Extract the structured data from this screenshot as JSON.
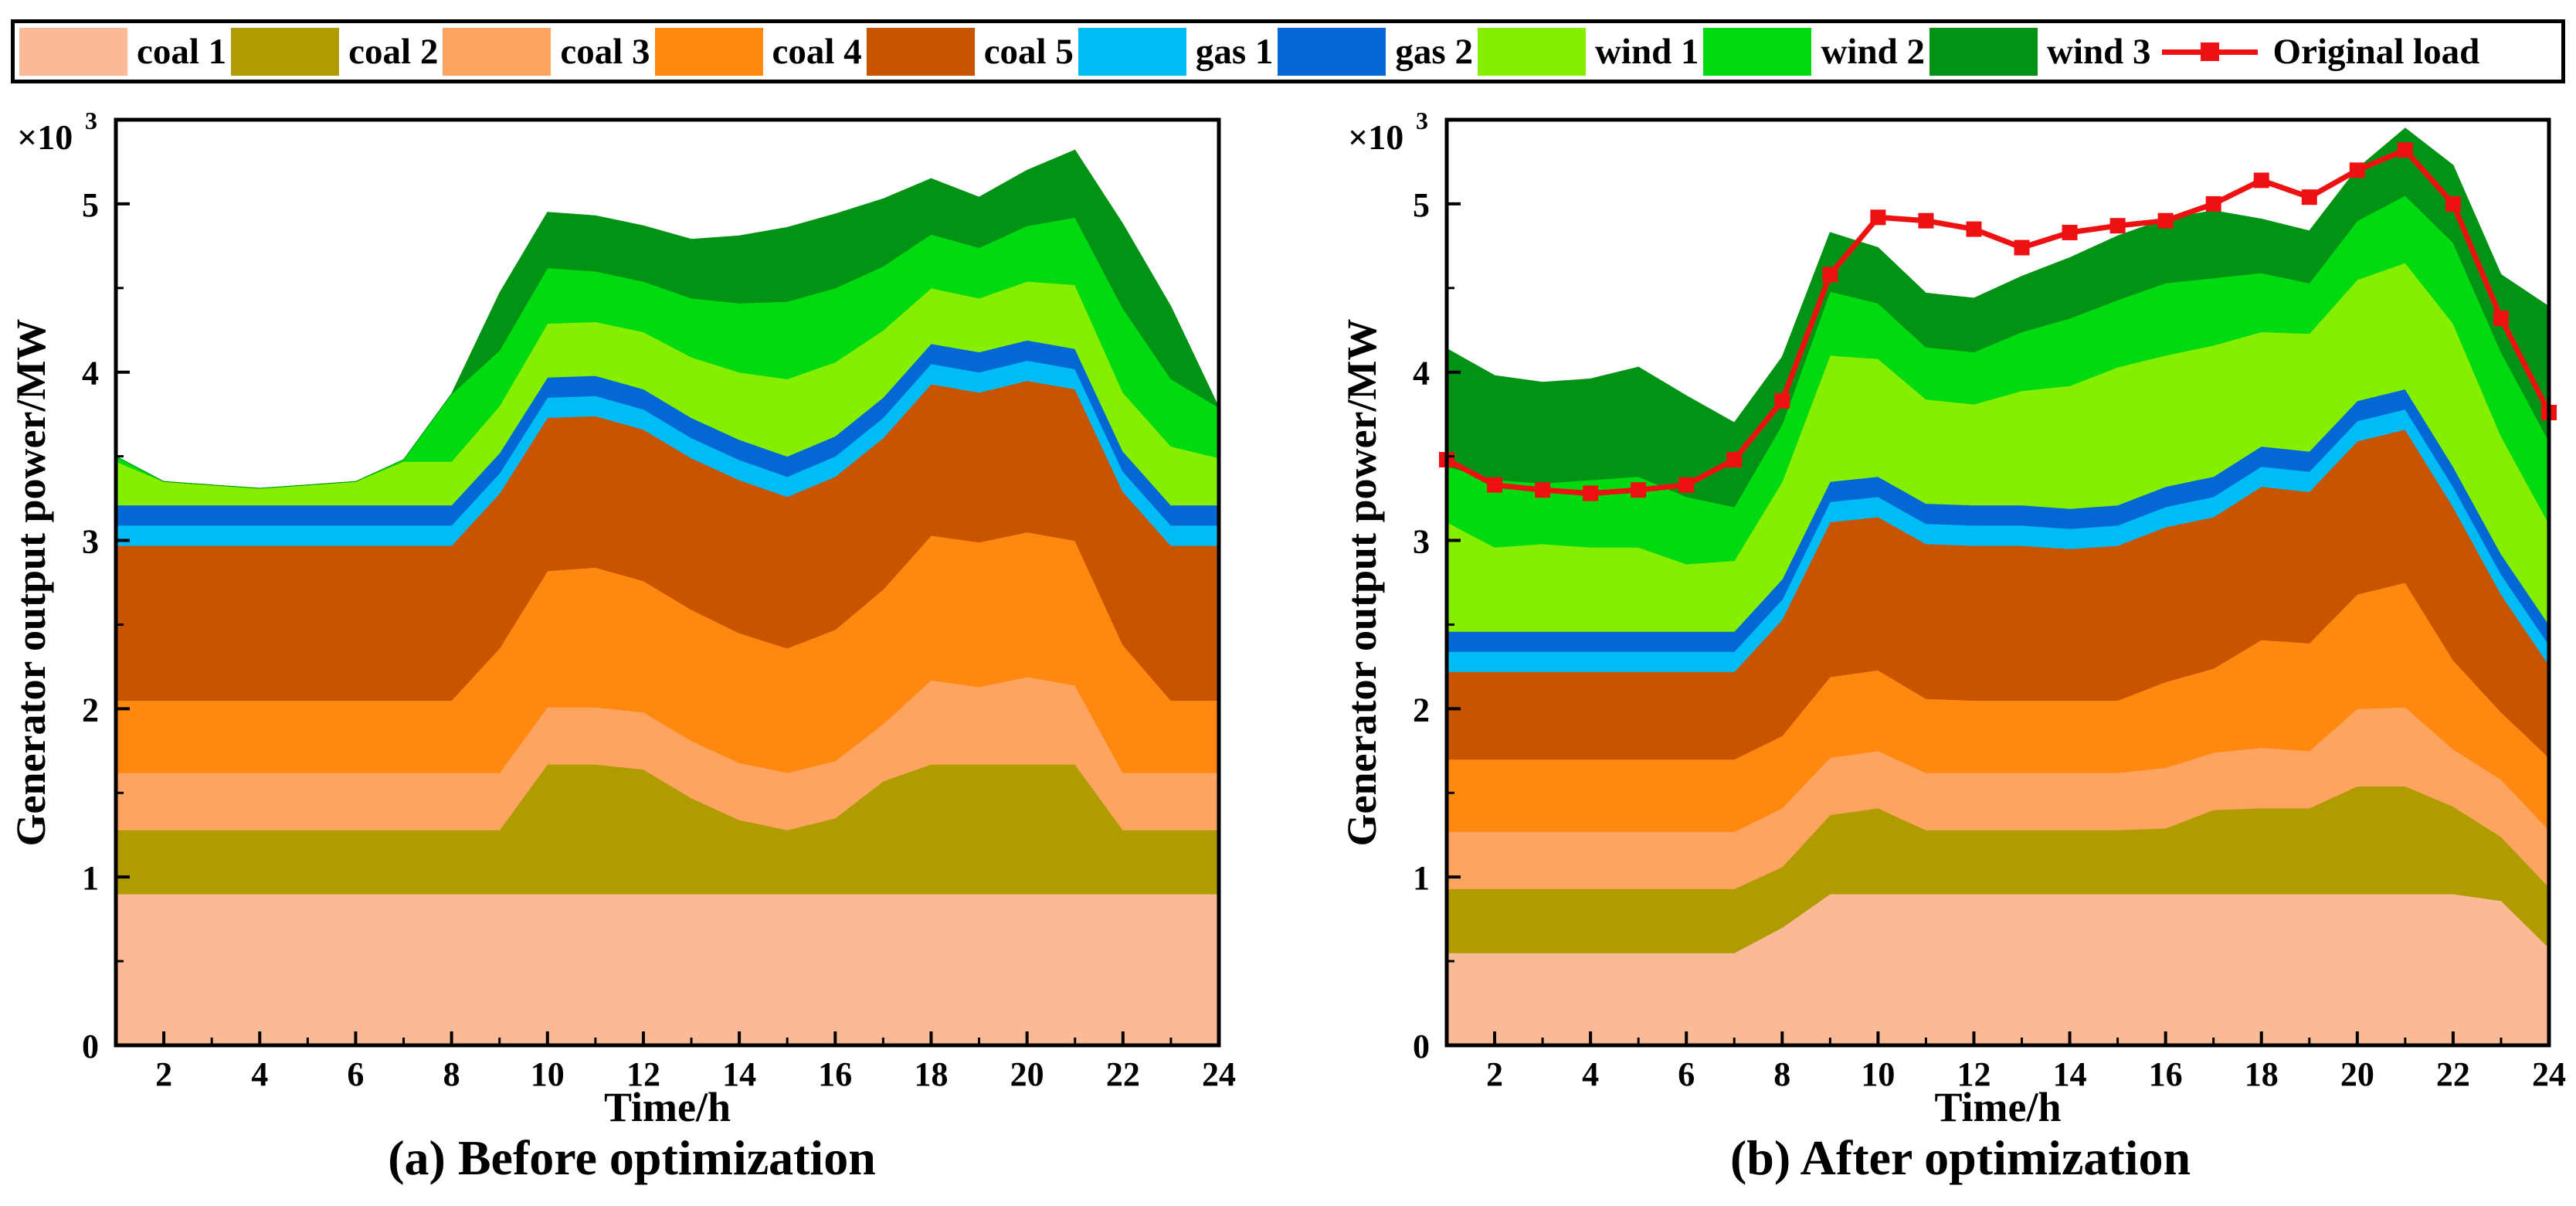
{
  "legend": {
    "items": [
      {
        "label": "coal 1",
        "color": "#FBBA96",
        "kind": "area"
      },
      {
        "label": "coal 2",
        "color": "#B09B00",
        "kind": "area"
      },
      {
        "label": "coal 3",
        "color": "#FDA460",
        "kind": "area"
      },
      {
        "label": "coal 4",
        "color": "#FF8810",
        "kind": "area"
      },
      {
        "label": "coal 5",
        "color": "#C85400",
        "kind": "area"
      },
      {
        "label": "gas 1",
        "color": "#00BBF4",
        "kind": "area"
      },
      {
        "label": "gas 2",
        "color": "#0368D4",
        "kind": "area"
      },
      {
        "label": "wind 1",
        "color": "#86EE00",
        "kind": "area"
      },
      {
        "label": "wind 2",
        "color": "#00DA10",
        "kind": "area"
      },
      {
        "label": "wind 3",
        "color": "#029314",
        "kind": "area"
      },
      {
        "label": "Original load",
        "color": "#EE1111",
        "kind": "line"
      }
    ]
  },
  "chart_data": [
    {
      "type": "area",
      "stacked": true,
      "title": "(a) Before optimization",
      "xlabel": "Time/h",
      "ylabel": "Generator output power/MW",
      "multiplier_label": "×10",
      "multiplier_exp": "3",
      "xlim": [
        1,
        24
      ],
      "ylim": [
        0,
        5.5
      ],
      "xticks": [
        2,
        4,
        6,
        8,
        10,
        12,
        14,
        16,
        18,
        20,
        22,
        24
      ],
      "yticks": [
        0,
        1,
        2,
        3,
        4,
        5
      ],
      "x": [
        1,
        2,
        3,
        4,
        5,
        6,
        7,
        8,
        9,
        10,
        11,
        12,
        13,
        14,
        15,
        16,
        17,
        18,
        19,
        20,
        21,
        22,
        23,
        24
      ],
      "series": [
        {
          "name": "coal 1",
          "color": "#FBBA96",
          "values": [
            0.9,
            0.9,
            0.9,
            0.9,
            0.9,
            0.9,
            0.9,
            0.9,
            0.9,
            0.9,
            0.9,
            0.9,
            0.9,
            0.9,
            0.9,
            0.9,
            0.9,
            0.9,
            0.9,
            0.9,
            0.9,
            0.9,
            0.9,
            0.9
          ]
        },
        {
          "name": "coal 2",
          "color": "#B09B00",
          "values": [
            0.38,
            0.38,
            0.38,
            0.38,
            0.38,
            0.38,
            0.38,
            0.38,
            0.38,
            0.77,
            0.77,
            0.74,
            0.57,
            0.44,
            0.38,
            0.45,
            0.67,
            0.77,
            0.77,
            0.77,
            0.77,
            0.38,
            0.38,
            0.38
          ]
        },
        {
          "name": "coal 3",
          "color": "#FDA460",
          "values": [
            0.34,
            0.34,
            0.34,
            0.34,
            0.34,
            0.34,
            0.34,
            0.34,
            0.34,
            0.34,
            0.34,
            0.34,
            0.34,
            0.34,
            0.34,
            0.34,
            0.34,
            0.5,
            0.46,
            0.52,
            0.47,
            0.34,
            0.34,
            0.34
          ]
        },
        {
          "name": "coal 4",
          "color": "#FF8810",
          "values": [
            0.43,
            0.43,
            0.43,
            0.43,
            0.43,
            0.43,
            0.43,
            0.43,
            0.74,
            0.81,
            0.83,
            0.78,
            0.78,
            0.77,
            0.74,
            0.78,
            0.8,
            0.86,
            0.86,
            0.86,
            0.86,
            0.76,
            0.43,
            0.43
          ]
        },
        {
          "name": "coal 5",
          "color": "#C85400",
          "values": [
            0.92,
            0.92,
            0.92,
            0.92,
            0.92,
            0.92,
            0.92,
            0.92,
            0.92,
            0.91,
            0.9,
            0.9,
            0.9,
            0.91,
            0.9,
            0.91,
            0.9,
            0.9,
            0.89,
            0.9,
            0.9,
            0.91,
            0.92,
            0.92
          ]
        },
        {
          "name": "gas 1",
          "color": "#00BBF4",
          "values": [
            0.12,
            0.12,
            0.12,
            0.12,
            0.12,
            0.12,
            0.12,
            0.12,
            0.12,
            0.12,
            0.12,
            0.12,
            0.12,
            0.12,
            0.12,
            0.12,
            0.12,
            0.12,
            0.12,
            0.12,
            0.12,
            0.12,
            0.12,
            0.12
          ]
        },
        {
          "name": "gas 2",
          "color": "#0368D4",
          "values": [
            0.12,
            0.12,
            0.12,
            0.12,
            0.12,
            0.12,
            0.12,
            0.12,
            0.12,
            0.12,
            0.12,
            0.12,
            0.12,
            0.12,
            0.12,
            0.12,
            0.12,
            0.12,
            0.12,
            0.12,
            0.12,
            0.12,
            0.12,
            0.12
          ]
        },
        {
          "name": "wind 1",
          "color": "#86EE00",
          "values": [
            0.26,
            0.14,
            0.12,
            0.1,
            0.12,
            0.14,
            0.26,
            0.26,
            0.28,
            0.32,
            0.32,
            0.34,
            0.36,
            0.4,
            0.46,
            0.44,
            0.4,
            0.33,
            0.32,
            0.35,
            0.38,
            0.35,
            0.35,
            0.28
          ]
        },
        {
          "name": "wind 2",
          "color": "#00DA10",
          "values": [
            0.03,
            0,
            0,
            0,
            0,
            0,
            0.01,
            0.4,
            0.33,
            0.33,
            0.3,
            0.3,
            0.35,
            0.41,
            0.46,
            0.44,
            0.38,
            0.32,
            0.3,
            0.33,
            0.4,
            0.5,
            0.4,
            0.3
          ]
        },
        {
          "name": "wind 3",
          "color": "#029314",
          "values": [
            0,
            0,
            0,
            0,
            0,
            0,
            0,
            0,
            0.34,
            0.33,
            0.33,
            0.33,
            0.35,
            0.4,
            0.44,
            0.44,
            0.4,
            0.33,
            0.3,
            0.33,
            0.4,
            0.5,
            0.43,
            0
          ]
        }
      ]
    },
    {
      "type": "area",
      "stacked": true,
      "title": "(b) After optimization",
      "xlabel": "Time/h",
      "ylabel": "Generator output power/MW",
      "multiplier_label": "×10",
      "multiplier_exp": "3",
      "xlim": [
        1,
        24
      ],
      "ylim": [
        0,
        5.5
      ],
      "xticks": [
        2,
        4,
        6,
        8,
        10,
        12,
        14,
        16,
        18,
        20,
        22,
        24
      ],
      "yticks": [
        0,
        1,
        2,
        3,
        4,
        5
      ],
      "x": [
        1,
        2,
        3,
        4,
        5,
        6,
        7,
        8,
        9,
        10,
        11,
        12,
        13,
        14,
        15,
        16,
        17,
        18,
        19,
        20,
        21,
        22,
        23,
        24
      ],
      "series": [
        {
          "name": "coal 1",
          "color": "#FBBA96",
          "values": [
            0.55,
            0.55,
            0.55,
            0.55,
            0.55,
            0.55,
            0.55,
            0.7,
            0.9,
            0.9,
            0.9,
            0.9,
            0.9,
            0.9,
            0.9,
            0.9,
            0.9,
            0.9,
            0.9,
            0.9,
            0.9,
            0.9,
            0.86,
            0.58
          ]
        },
        {
          "name": "coal 2",
          "color": "#B09B00",
          "values": [
            0.38,
            0.38,
            0.38,
            0.38,
            0.38,
            0.38,
            0.38,
            0.36,
            0.47,
            0.51,
            0.38,
            0.38,
            0.38,
            0.38,
            0.38,
            0.39,
            0.5,
            0.51,
            0.51,
            0.64,
            0.64,
            0.52,
            0.38,
            0.36
          ]
        },
        {
          "name": "coal 3",
          "color": "#FDA460",
          "values": [
            0.34,
            0.34,
            0.34,
            0.34,
            0.34,
            0.34,
            0.34,
            0.35,
            0.34,
            0.34,
            0.34,
            0.34,
            0.34,
            0.34,
            0.34,
            0.36,
            0.34,
            0.36,
            0.34,
            0.46,
            0.47,
            0.34,
            0.34,
            0.34
          ]
        },
        {
          "name": "coal 4",
          "color": "#FF8810",
          "values": [
            0.43,
            0.43,
            0.43,
            0.43,
            0.43,
            0.43,
            0.43,
            0.43,
            0.48,
            0.48,
            0.44,
            0.43,
            0.43,
            0.43,
            0.43,
            0.51,
            0.5,
            0.64,
            0.64,
            0.68,
            0.74,
            0.53,
            0.4,
            0.43
          ]
        },
        {
          "name": "coal 5",
          "color": "#C85400",
          "values": [
            0.52,
            0.52,
            0.52,
            0.52,
            0.52,
            0.52,
            0.52,
            0.69,
            0.92,
            0.91,
            0.92,
            0.92,
            0.92,
            0.9,
            0.92,
            0.92,
            0.9,
            0.91,
            0.9,
            0.91,
            0.91,
            0.91,
            0.7,
            0.55
          ]
        },
        {
          "name": "gas 1",
          "color": "#00BBF4",
          "values": [
            0.12,
            0.12,
            0.12,
            0.12,
            0.12,
            0.12,
            0.12,
            0.12,
            0.12,
            0.12,
            0.12,
            0.12,
            0.12,
            0.12,
            0.12,
            0.12,
            0.12,
            0.12,
            0.12,
            0.12,
            0.12,
            0.12,
            0.12,
            0.12
          ]
        },
        {
          "name": "gas 2",
          "color": "#0368D4",
          "values": [
            0.12,
            0.12,
            0.12,
            0.12,
            0.12,
            0.12,
            0.12,
            0.12,
            0.12,
            0.12,
            0.12,
            0.12,
            0.12,
            0.12,
            0.12,
            0.12,
            0.12,
            0.12,
            0.12,
            0.12,
            0.12,
            0.12,
            0.12,
            0.12
          ]
        },
        {
          "name": "wind 1",
          "color": "#86EE00",
          "values": [
            0.65,
            0.5,
            0.52,
            0.5,
            0.5,
            0.4,
            0.42,
            0.58,
            0.75,
            0.7,
            0.62,
            0.6,
            0.68,
            0.73,
            0.82,
            0.78,
            0.78,
            0.68,
            0.7,
            0.72,
            0.75,
            0.85,
            0.7,
            0.6
          ]
        },
        {
          "name": "wind 2",
          "color": "#00DA10",
          "values": [
            0.33,
            0.4,
            0.36,
            0.4,
            0.42,
            0.4,
            0.32,
            0.34,
            0.38,
            0.33,
            0.31,
            0.31,
            0.35,
            0.4,
            0.4,
            0.43,
            0.4,
            0.35,
            0.3,
            0.35,
            0.4,
            0.48,
            0.5,
            0.49
          ]
        },
        {
          "name": "wind 3",
          "color": "#029314",
          "values": [
            0.7,
            0.62,
            0.6,
            0.6,
            0.65,
            0.6,
            0.5,
            0.4,
            0.35,
            0.33,
            0.32,
            0.32,
            0.33,
            0.36,
            0.38,
            0.38,
            0.4,
            0.32,
            0.31,
            0.31,
            0.4,
            0.46,
            0.46,
            0.8
          ]
        },
        {
          "name": "Original load",
          "color": "#EE1111",
          "kind": "line",
          "values": [
            3.48,
            3.33,
            3.3,
            3.28,
            3.3,
            3.33,
            3.48,
            3.83,
            4.58,
            4.92,
            4.9,
            4.85,
            4.74,
            4.83,
            4.87,
            4.9,
            5.0,
            5.14,
            5.04,
            5.2,
            5.32,
            5.0,
            4.32,
            3.76
          ]
        }
      ]
    }
  ]
}
